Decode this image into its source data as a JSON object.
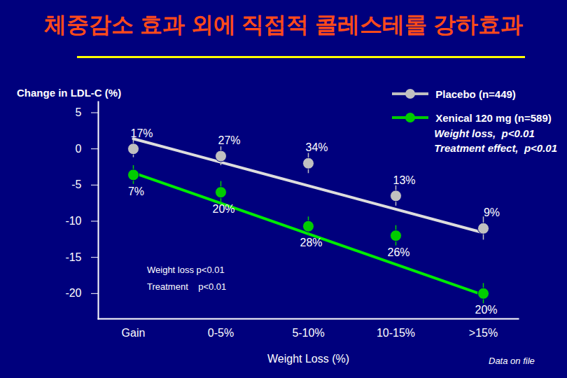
{
  "chart_data": {
    "type": "scatter",
    "title": "체중감소 효과 외에 직접적 콜레스테롤 강하효과",
    "x_label": "Weight Loss (%)",
    "y_label": "Change in LDL-C (%)",
    "categories": [
      "Gain",
      "0-5%",
      "5-10%",
      "10-15%",
      ">15%"
    ],
    "ylim": [
      -23.5,
      6.5
    ],
    "yticks": [
      5,
      0,
      -5,
      -10,
      -15,
      -20
    ],
    "legend": "top-right",
    "series": [
      {
        "name": "Placebo (n=449)",
        "color": "#c0c0c0",
        "marker": "circle",
        "values": [
          0,
          -1,
          -2,
          -6.5,
          -11
        ],
        "errors": [
          1.2,
          1.3,
          1.4,
          1.4,
          1.6
        ],
        "trend": [
          1.4,
          -11.6
        ],
        "point_labels": [
          "17%",
          "27%",
          "34%",
          "13%",
          "9%"
        ]
      },
      {
        "name": "Xenical 120 mg (n=589)",
        "color": "#00cc00",
        "marker": "circle",
        "values": [
          -3.6,
          -6,
          -10.7,
          -12,
          -20
        ],
        "errors": [
          1.3,
          1.5,
          1.3,
          1.4,
          1.4
        ],
        "trend": [
          -3.3,
          -20.2
        ],
        "point_labels": [
          "7%",
          "20%",
          "28%",
          "26%",
          "20%"
        ]
      }
    ],
    "legend_notes": [
      "Weight loss,  p<0.01",
      "Treatment effect,  p<0.01"
    ],
    "annotations": [
      "Weight loss p<0.01",
      "Treatment    p<0.01"
    ],
    "source": "Data on file"
  }
}
